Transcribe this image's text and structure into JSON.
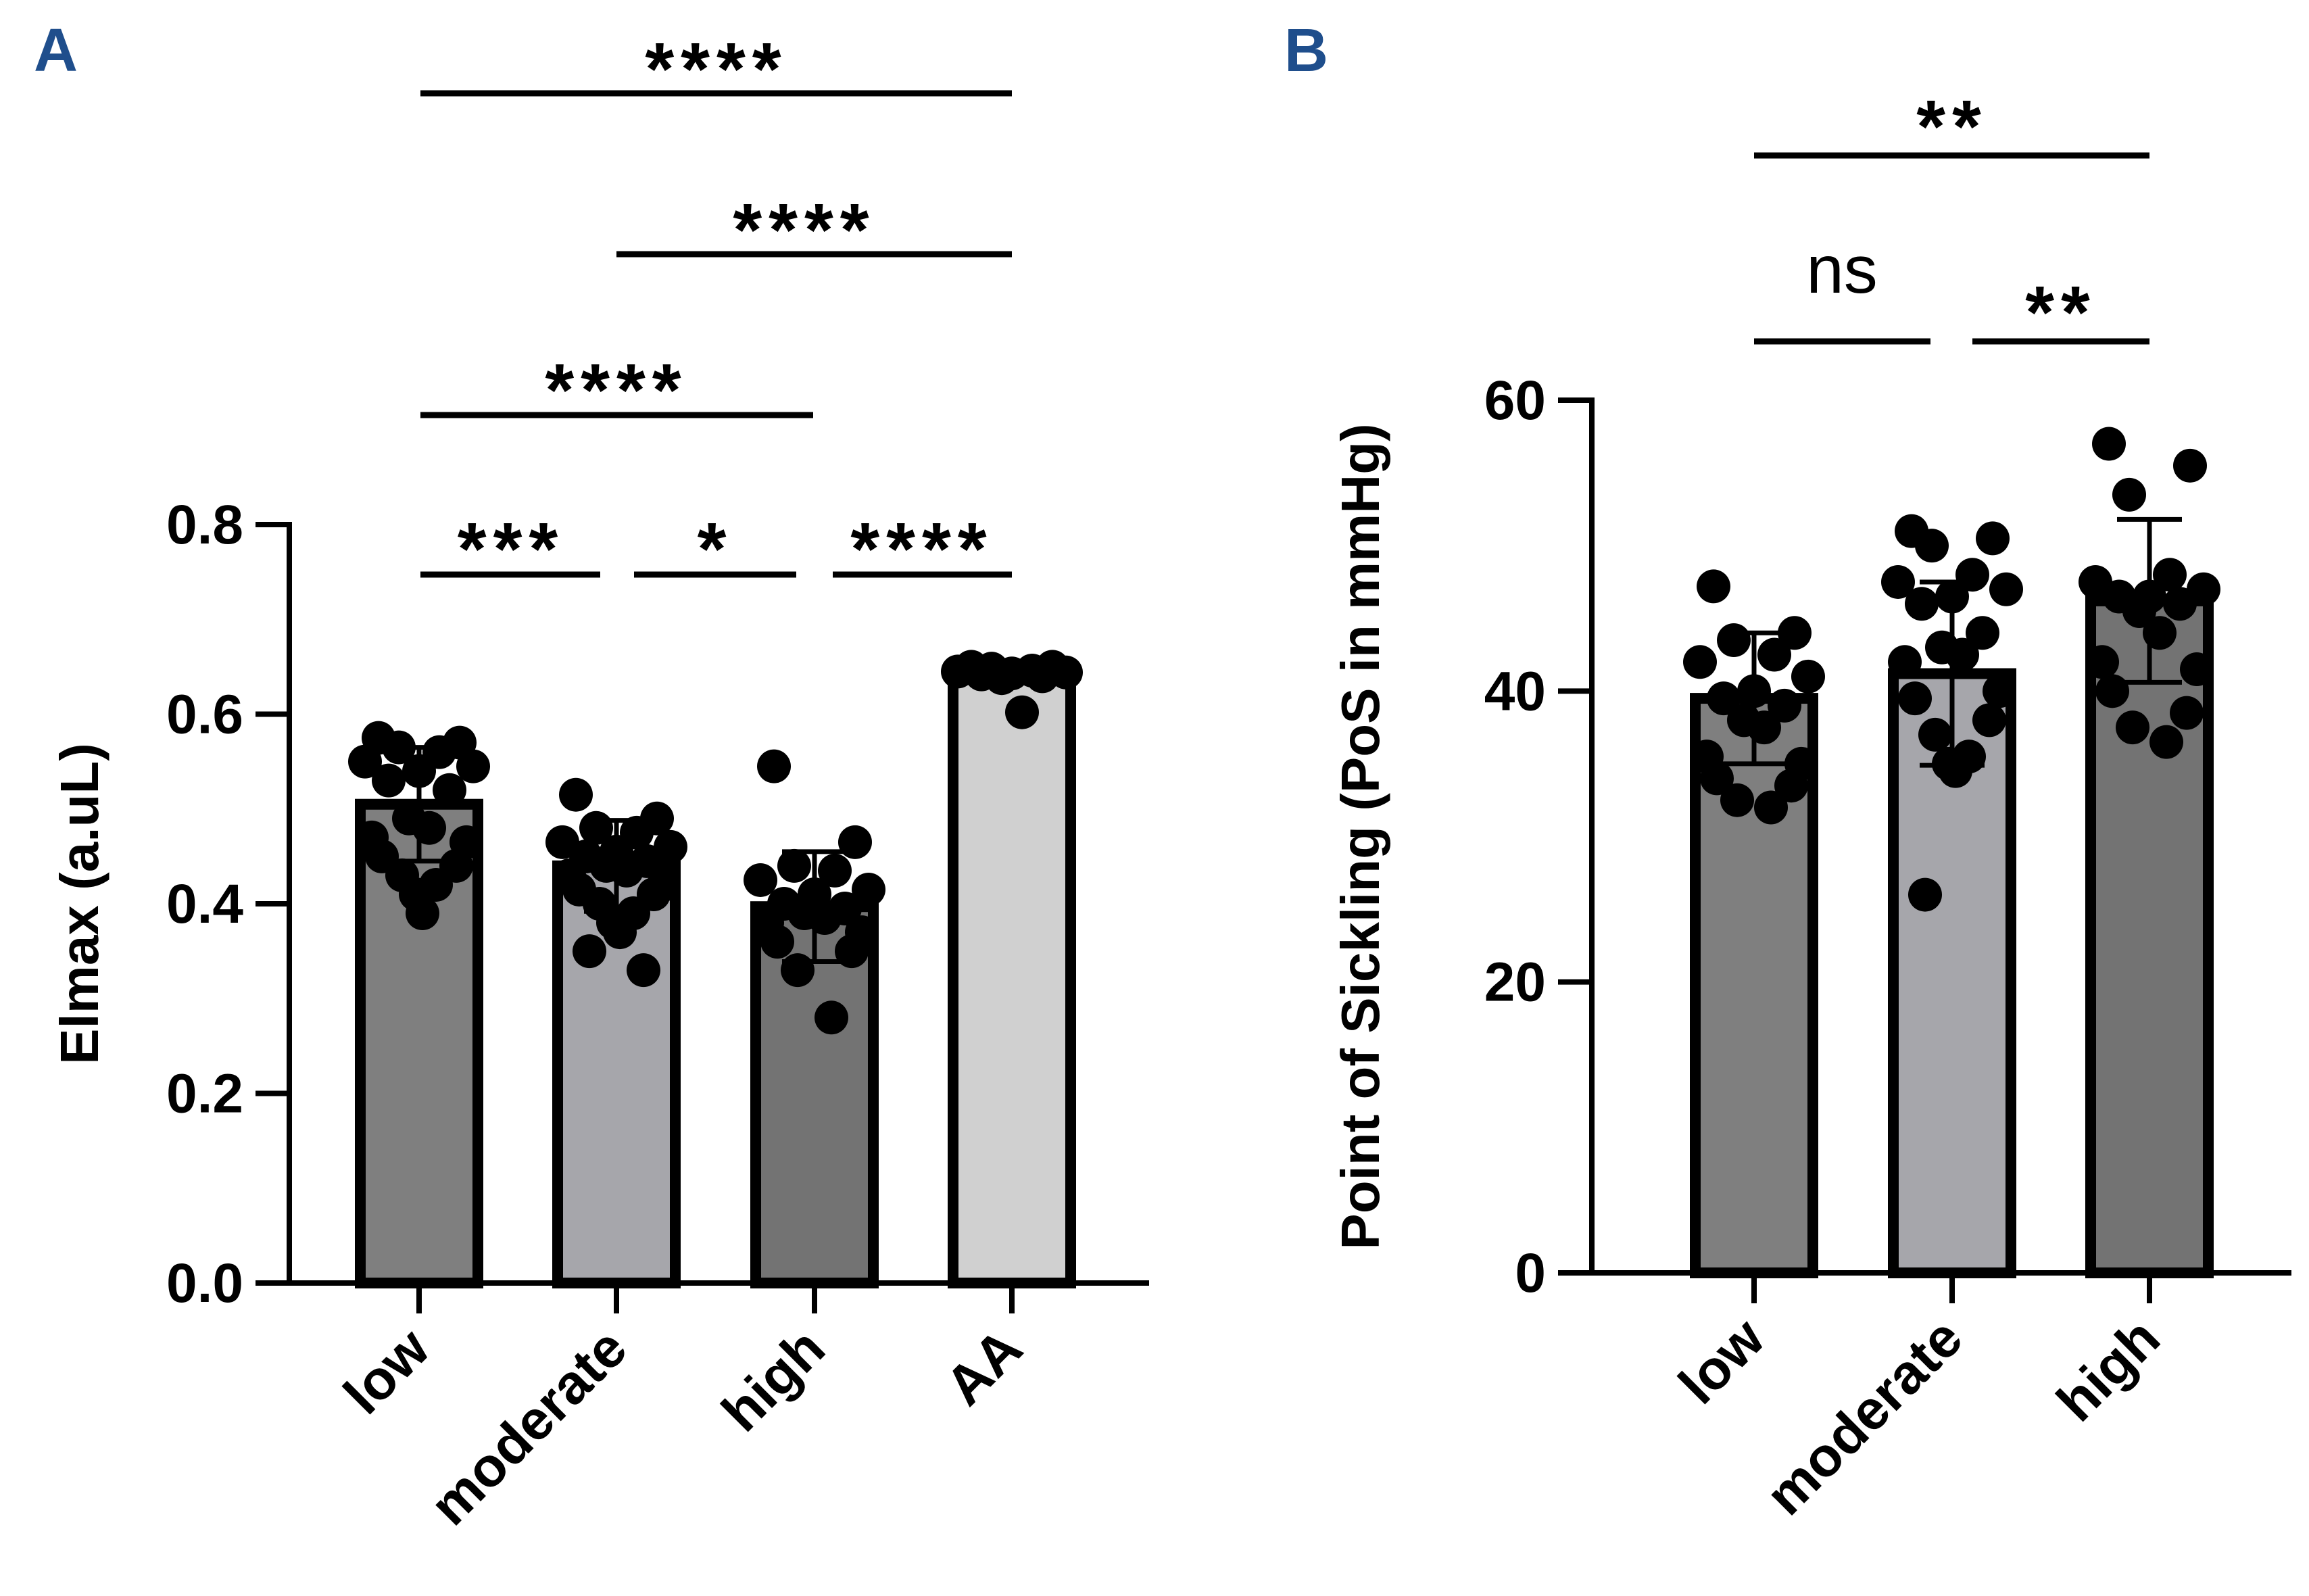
{
  "chart_data": [
    {
      "panel": "A",
      "panel_color": "#1f4e8c",
      "type": "bar",
      "ylabel": "Elmax (a.uL)",
      "xlabel": "",
      "ylim": [
        0,
        0.8
      ],
      "yticks": [
        0.0,
        0.2,
        0.4,
        0.6,
        0.8
      ],
      "ytick_labels": [
        "0.0",
        "0.2",
        "0.4",
        "0.6",
        "0.8"
      ],
      "categories": [
        "low",
        "moderate",
        "high",
        "AA"
      ],
      "values": [
        0.505,
        0.44,
        0.397,
        0.643
      ],
      "error_sd": [
        0.06,
        0.048,
        0.058,
        0.0
      ],
      "bar_colors": [
        "#7f7f7f",
        "#a6a6ab",
        "#737373",
        "#d0d0d0"
      ],
      "points": [
        [
          0.575,
          0.57,
          0.565,
          0.56,
          0.55,
          0.545,
          0.54,
          0.53,
          0.52,
          0.49,
          0.48,
          0.47,
          0.465,
          0.45,
          0.44,
          0.43,
          0.42,
          0.41,
          0.39
        ],
        [
          0.515,
          0.49,
          0.48,
          0.475,
          0.465,
          0.46,
          0.455,
          0.45,
          0.445,
          0.44,
          0.435,
          0.43,
          0.42,
          0.415,
          0.41,
          0.4,
          0.39,
          0.38,
          0.37,
          0.35,
          0.33
        ],
        [
          0.545,
          0.465,
          0.44,
          0.435,
          0.425,
          0.415,
          0.41,
          0.4,
          0.395,
          0.39,
          0.385,
          0.38,
          0.37,
          0.36,
          0.35,
          0.33,
          0.28
        ],
        [
          0.65,
          0.65,
          0.648,
          0.646,
          0.645,
          0.644,
          0.643,
          0.642,
          0.64,
          0.638,
          0.602
        ]
      ],
      "comparisons": [
        {
          "from": "low",
          "to": "moderate",
          "label": "***"
        },
        {
          "from": "moderate",
          "to": "high",
          "label": "*"
        },
        {
          "from": "high",
          "to": "AA",
          "label": "****"
        },
        {
          "from": "low",
          "to": "high",
          "label": "****"
        },
        {
          "from": "moderate",
          "to": "AA",
          "label": "****"
        },
        {
          "from": "low",
          "to": "AA",
          "label": "****"
        }
      ]
    },
    {
      "panel": "B",
      "panel_color": "#1f4e8c",
      "type": "bar",
      "ylabel": "Point of Sickling (PoS in mmHg)",
      "xlabel": "",
      "ylim": [
        0,
        60
      ],
      "yticks": [
        0,
        20,
        40,
        60
      ],
      "ytick_labels": [
        "0",
        "20",
        "40",
        "60"
      ],
      "categories": [
        "low",
        "moderate",
        "high"
      ],
      "values": [
        39.5,
        41.2,
        46.2
      ],
      "error_sd": [
        4.5,
        6.3,
        5.6
      ],
      "bar_colors": [
        "#7f7f7f",
        "#a6a6ab",
        "#737373"
      ],
      "points": [
        [
          47.2,
          44,
          43.5,
          42.5,
          42,
          41,
          40,
          39.5,
          39,
          38,
          37.5,
          35.5,
          35,
          34,
          33.5,
          32.5,
          32
        ],
        [
          51,
          50.5,
          50,
          48,
          47.5,
          47,
          46.5,
          46,
          44,
          43,
          42.5,
          42,
          40,
          39.5,
          38,
          37,
          35.5,
          35,
          34.5,
          26
        ],
        [
          57,
          55.5,
          53.5,
          48,
          47.5,
          47,
          46.5,
          46.5,
          46,
          45.5,
          44,
          42,
          41.5,
          40,
          38.5,
          37.5,
          36.5
        ]
      ],
      "comparisons": [
        {
          "from": "low",
          "to": "moderate",
          "label": "ns"
        },
        {
          "from": "moderate",
          "to": "high",
          "label": "**"
        },
        {
          "from": "low",
          "to": "high",
          "label": "**"
        }
      ]
    }
  ]
}
